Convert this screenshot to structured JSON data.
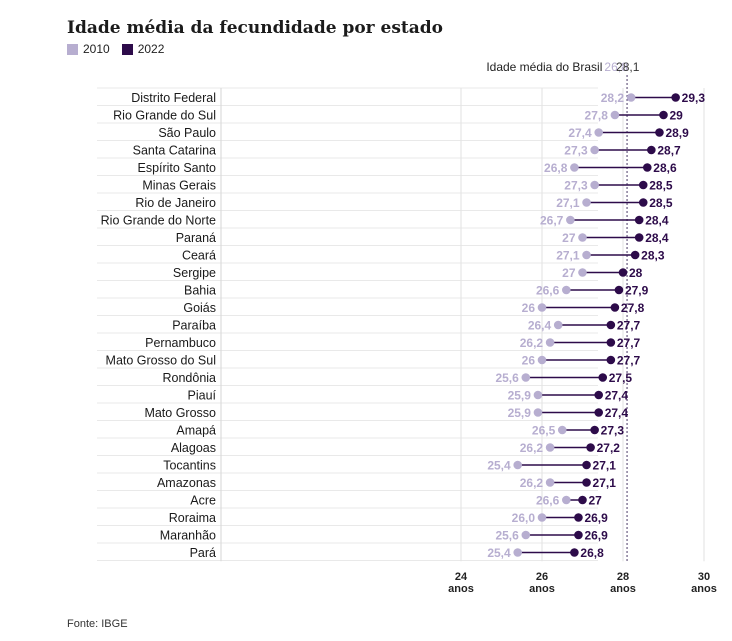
{
  "title": "Idade média da fecundidade por estado",
  "legend": {
    "y2010": "2010",
    "y2022": "2022",
    "color_2010": "#b7aed0",
    "color_2022": "#2d0b4a"
  },
  "source": "Fonte: IBGE",
  "chart_data": {
    "type": "dumbbell",
    "x_unit": "anos",
    "x_ticks": [
      24,
      26,
      28,
      30
    ],
    "x_range": [
      22.2,
      30.5
    ],
    "grid": true,
    "reference": {
      "label": "Idade média do Brasil",
      "value_2010": 26.8,
      "value_2022": 28.1,
      "label_2010": "26,8",
      "label_2022": "28,1"
    },
    "series": [
      {
        "name": "2010",
        "color": "#b7aed0"
      },
      {
        "name": "2022",
        "color": "#2d0b4a"
      }
    ],
    "categories": [
      "Distrito Federal",
      "Rio Grande do Sul",
      "São Paulo",
      "Santa Catarina",
      "Espírito Santo",
      "Minas Gerais",
      "Rio de Janeiro",
      "Rio Grande do Norte",
      "Paraná",
      "Ceará",
      "Sergipe",
      "Bahia",
      "Goiás",
      "Paraíba",
      "Pernambuco",
      "Mato Grosso do Sul",
      "Rondônia",
      "Piauí",
      "Mato Grosso",
      "Amapá",
      "Alagoas",
      "Tocantins",
      "Amazonas",
      "Acre",
      "Roraima",
      "Maranhão",
      "Pará"
    ],
    "values_2010": [
      28.2,
      27.8,
      27.4,
      27.3,
      26.8,
      27.3,
      27.1,
      26.7,
      27,
      27.1,
      27,
      26.6,
      26,
      26.4,
      26.2,
      26,
      25.6,
      25.9,
      25.9,
      26.5,
      26.2,
      25.4,
      26.2,
      26.6,
      26.0,
      25.6,
      25.4
    ],
    "labels_2010": [
      "28,2",
      "27,8",
      "27,4",
      "27,3",
      "26,8",
      "27,3",
      "27,1",
      "26,7",
      "27",
      "27,1",
      "27",
      "26,6",
      "26",
      "26,4",
      "26,2",
      "26",
      "25,6",
      "25,9",
      "25,9",
      "26,5",
      "26,2",
      "25,4",
      "26,2",
      "26,6",
      "26,0",
      "25,6",
      "25,4"
    ],
    "values_2022": [
      29.3,
      29,
      28.9,
      28.7,
      28.6,
      28.5,
      28.5,
      28.4,
      28.4,
      28.3,
      28,
      27.9,
      27.8,
      27.7,
      27.7,
      27.7,
      27.5,
      27.4,
      27.4,
      27.3,
      27.2,
      27.1,
      27.1,
      27,
      26.9,
      26.9,
      26.8
    ],
    "labels_2022": [
      "29,3",
      "29",
      "28,9",
      "28,7",
      "28,6",
      "28,5",
      "28,5",
      "28,4",
      "28,4",
      "28,3",
      "28",
      "27,9",
      "27,8",
      "27,7",
      "27,7",
      "27,7",
      "27,5",
      "27,4",
      "27,4",
      "27,3",
      "27,2",
      "27,1",
      "27,1",
      "27",
      "26,9",
      "26,9",
      "26,8"
    ]
  }
}
